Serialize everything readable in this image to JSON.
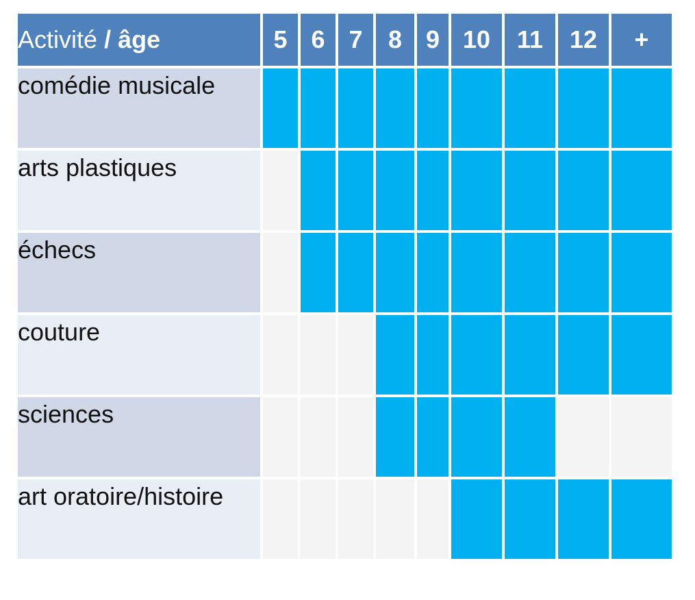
{
  "header": {
    "activity_label": "Activité",
    "separator": "/",
    "age_label": "âge",
    "ages": [
      "5",
      "6",
      "7",
      "8",
      "9",
      "10",
      "11",
      "12",
      "+"
    ]
  },
  "colors": {
    "header_bg": "#4f81bd",
    "active_cell": "#00b0f0",
    "inactive_cell": "#f4f4f4",
    "row_label_odd": "#d0d8e8",
    "row_label_even": "#e9edf4"
  },
  "rows": [
    {
      "name": "comédie musicale",
      "available": [
        true,
        true,
        true,
        true,
        true,
        true,
        true,
        true,
        true
      ]
    },
    {
      "name": "arts plastiques",
      "available": [
        false,
        true,
        true,
        true,
        true,
        true,
        true,
        true,
        true
      ]
    },
    {
      "name": "échecs",
      "available": [
        false,
        true,
        true,
        true,
        true,
        true,
        true,
        true,
        true
      ]
    },
    {
      "name": "couture",
      "available": [
        false,
        false,
        false,
        true,
        true,
        true,
        true,
        true,
        true
      ]
    },
    {
      "name": "sciences",
      "available": [
        false,
        false,
        false,
        true,
        true,
        true,
        true,
        false,
        false
      ]
    },
    {
      "name": "art oratoire/histoire",
      "available": [
        false,
        false,
        false,
        false,
        false,
        true,
        true,
        true,
        true
      ]
    }
  ]
}
